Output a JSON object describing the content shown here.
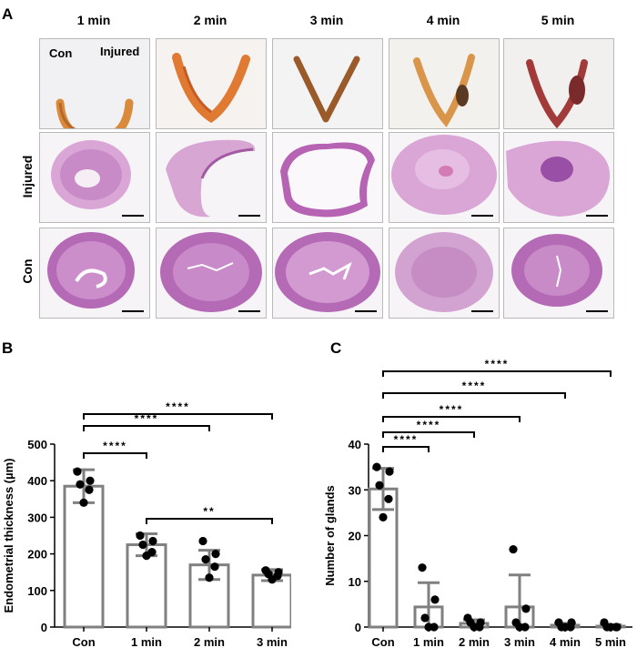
{
  "panels": {
    "a": "A",
    "b": "B",
    "c": "C"
  },
  "time_points": [
    "1 min",
    "2 min",
    "3 min",
    "4 min",
    "5 min"
  ],
  "row_labels": {
    "injured": "Injured",
    "con": "Con"
  },
  "photo_labels": {
    "con": "Con",
    "injured": "Injured"
  },
  "colors": {
    "he_stain": "#c55fbf",
    "tissue_orange": "#d98a3a",
    "tissue_dark": "#7a4a2a",
    "bar_edge": "#808080"
  },
  "chart_data": [
    {
      "type": "bar",
      "panel": "B",
      "categories": [
        "Con",
        "1 min",
        "2 min",
        "3 min"
      ],
      "values": [
        385,
        225,
        170,
        142
      ],
      "error": [
        45,
        30,
        40,
        15
      ],
      "points": [
        [
          425,
          400,
          390,
          375,
          340
        ],
        [
          250,
          235,
          225,
          205,
          195
        ],
        [
          235,
          200,
          185,
          165,
          135
        ],
        [
          155,
          150,
          145,
          140,
          130
        ]
      ],
      "ylabel": "Endometrial  thickness (µm)",
      "ylim": [
        0,
        500
      ],
      "yticks": [
        0,
        100,
        200,
        300,
        400,
        500
      ],
      "comparisons": [
        {
          "from": "Con",
          "to": "1 min",
          "label": "****"
        },
        {
          "from": "Con",
          "to": "2 min",
          "label": "****"
        },
        {
          "from": "Con",
          "to": "3 min",
          "label": "****"
        },
        {
          "from": "1 min",
          "to": "3 min",
          "label": "**"
        }
      ]
    },
    {
      "type": "bar",
      "panel": "C",
      "categories": [
        "Con",
        "1 min",
        "2 min",
        "3 min",
        "4 min",
        "5 min"
      ],
      "values": [
        30.2,
        4.4,
        0.8,
        4.4,
        0.4,
        0.2
      ],
      "error": [
        4.5,
        5.3,
        0.8,
        7.0,
        0.4,
        0.3
      ],
      "points": [
        [
          35,
          34,
          31,
          28,
          24
        ],
        [
          13,
          6,
          2,
          0,
          0
        ],
        [
          2,
          1,
          1,
          0,
          0
        ],
        [
          17,
          4,
          1,
          0,
          0
        ],
        [
          1,
          1,
          0,
          0,
          0
        ],
        [
          1,
          0,
          0,
          0,
          0
        ]
      ],
      "ylabel": "Number  of  glands",
      "ylim": [
        0,
        40
      ],
      "yticks": [
        0,
        10,
        20,
        30,
        40
      ],
      "comparisons": [
        {
          "from": "Con",
          "to": "1 min",
          "label": "****"
        },
        {
          "from": "Con",
          "to": "2 min",
          "label": "****"
        },
        {
          "from": "Con",
          "to": "3 min",
          "label": "****"
        },
        {
          "from": "Con",
          "to": "4 min",
          "label": "****"
        },
        {
          "from": "Con",
          "to": "5 min",
          "label": "****"
        }
      ]
    }
  ]
}
